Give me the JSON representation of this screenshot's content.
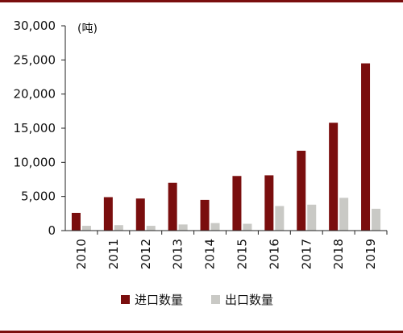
{
  "chart_data": {
    "type": "bar",
    "unit_label": "(吨)",
    "categories": [
      "2010",
      "2011",
      "2012",
      "2013",
      "2014",
      "2015",
      "2016",
      "2017",
      "2018",
      "2019"
    ],
    "series": [
      {
        "name": "进口数量",
        "color": "#7a0e0e",
        "values": [
          2600,
          4900,
          4700,
          7000,
          4500,
          8000,
          8100,
          11700,
          15800,
          24500
        ]
      },
      {
        "name": "出口数量",
        "color": "#c9c9c5",
        "values": [
          700,
          800,
          700,
          900,
          1100,
          1000,
          3600,
          3800,
          4800,
          3200
        ]
      }
    ],
    "ylim": [
      0,
      30000
    ],
    "yticks": [
      0,
      5000,
      10000,
      15000,
      20000,
      25000,
      30000
    ],
    "ytick_labels": [
      "0",
      "5,000",
      "10,000",
      "15,000",
      "20,000",
      "25,000",
      "30,000"
    ],
    "legend_position": "bottom",
    "grid": false
  }
}
